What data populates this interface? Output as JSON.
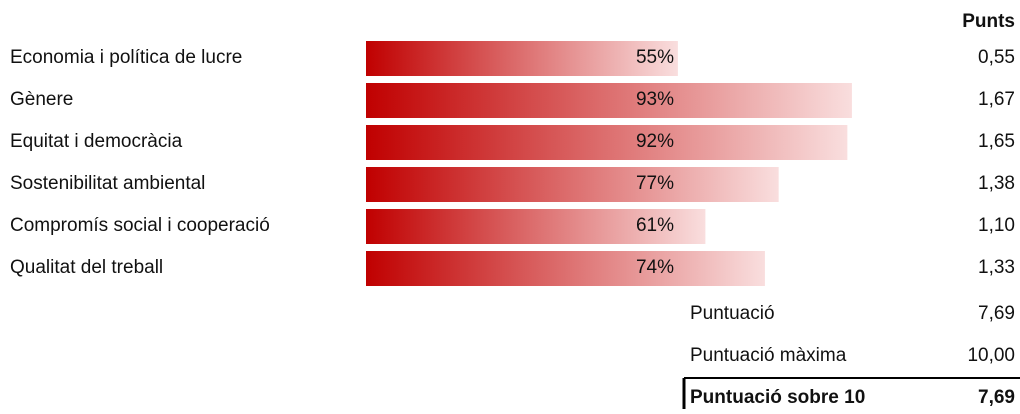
{
  "header": "Punts",
  "rows": [
    {
      "label": "Economia i política de lucre",
      "share": 55,
      "share_label": "55%",
      "points": 0.55,
      "points_label": "0,55"
    },
    {
      "label": "Gènere",
      "share": 93,
      "share_label": "93%",
      "points": 1.67,
      "points_label": "1,67"
    },
    {
      "label": "Equitat i democràcia",
      "share": 92,
      "share_label": "92%",
      "points": 1.65,
      "points_label": "1,65"
    },
    {
      "label": "Sostenibilitat ambiental",
      "share": 77,
      "share_label": "77%",
      "points": 1.38,
      "points_label": "1,38"
    },
    {
      "label": "Compromís social i cooperació",
      "share": 61,
      "share_label": "61%",
      "points": 1.1,
      "points_label": "1,10"
    },
    {
      "label": "Qualitat del treball",
      "share": 74,
      "share_label": "74%",
      "points": 1.33,
      "points_label": "1,33"
    }
  ],
  "summary": [
    {
      "label": "Puntuació",
      "value": 7.69,
      "value_label": "7,69"
    },
    {
      "label": "Puntuació màxima",
      "value": 10,
      "value_label": "10,00"
    },
    {
      "label": "Puntuació sobre 10",
      "value": 7.69,
      "value_label": "7,69"
    }
  ]
}
